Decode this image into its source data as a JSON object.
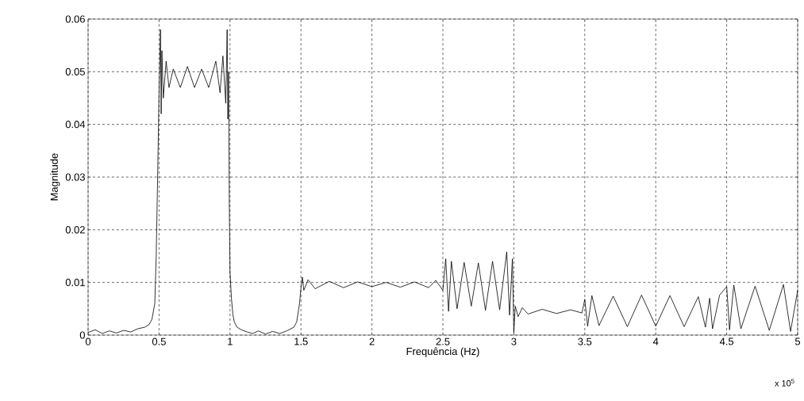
{
  "chart_data": {
    "type": "line",
    "xlabel": "Frequência (Hz)",
    "ylabel": "Magnitude",
    "annotations": [
      "x 10$^{5}$"
    ],
    "xlim": [
      0,
      5
    ],
    "ylim": [
      0,
      0.06
    ],
    "xticks": [
      0,
      0.5,
      1,
      1.5,
      2,
      2.5,
      3,
      3.5,
      4,
      4.5,
      5
    ],
    "yticks": [
      0,
      0.01,
      0.02,
      0.03,
      0.04,
      0.05,
      0.06
    ],
    "grid": true,
    "line_style": "solid",
    "series": [
      {
        "color": "#000000",
        "x": [
          0,
          0.05,
          0.1,
          0.15,
          0.2,
          0.25,
          0.3,
          0.35,
          0.4,
          0.43,
          0.45,
          0.47,
          0.48,
          0.49,
          0.5,
          0.51,
          0.515,
          0.52,
          0.53,
          0.55,
          0.57,
          0.6,
          0.65,
          0.7,
          0.75,
          0.8,
          0.85,
          0.9,
          0.93,
          0.95,
          0.97,
          0.98,
          0.985,
          0.99,
          0.995,
          1,
          1.01,
          1.02,
          1.03,
          1.05,
          1.08,
          1.12,
          1.16,
          1.2,
          1.25,
          1.3,
          1.35,
          1.4,
          1.45,
          1.47,
          1.49,
          1.5,
          1.51,
          1.52,
          1.55,
          1.6,
          1.7,
          1.8,
          1.9,
          2,
          2.1,
          2.2,
          2.3,
          2.4,
          2.45,
          2.5,
          2.52,
          2.54,
          2.56,
          2.6,
          2.65,
          2.7,
          2.75,
          2.8,
          2.85,
          2.9,
          2.95,
          2.97,
          2.99,
          3,
          3.01,
          3.03,
          3.06,
          3.1,
          3.2,
          3.3,
          3.4,
          3.48,
          3.5,
          3.52,
          3.55,
          3.6,
          3.7,
          3.8,
          3.9,
          4,
          4.1,
          4.2,
          4.3,
          4.35,
          4.38,
          4.4,
          4.45,
          4.5,
          4.52,
          4.55,
          4.6,
          4.7,
          4.8,
          4.9,
          4.95,
          5
        ],
        "values": [
          0.0005,
          0.001,
          0.0003,
          0.0008,
          0.0004,
          0.0009,
          0.0006,
          0.0012,
          0.0015,
          0.002,
          0.003,
          0.006,
          0.015,
          0.03,
          0.046,
          0.058,
          0.042,
          0.054,
          0.045,
          0.052,
          0.047,
          0.0505,
          0.047,
          0.051,
          0.047,
          0.0505,
          0.047,
          0.052,
          0.046,
          0.053,
          0.044,
          0.058,
          0.041,
          0.05,
          0.025,
          0.012,
          0.007,
          0.004,
          0.0025,
          0.0015,
          0.001,
          0.0006,
          0.0003,
          0.0008,
          0.0002,
          0.0007,
          0.0003,
          0.0008,
          0.0015,
          0.0025,
          0.006,
          0.009,
          0.011,
          0.0085,
          0.0105,
          0.0088,
          0.0102,
          0.009,
          0.0101,
          0.0092,
          0.01,
          0.0091,
          0.0101,
          0.009,
          0.0104,
          0.0085,
          0.0145,
          0.0045,
          0.014,
          0.005,
          0.0138,
          0.0055,
          0.0137,
          0.0047,
          0.014,
          0.0048,
          0.0158,
          0.0038,
          0.0145,
          0.0005,
          0.0055,
          0.0035,
          0.0052,
          0.004,
          0.0049,
          0.0041,
          0.0048,
          0.0042,
          0.0068,
          0.0017,
          0.0075,
          0.0018,
          0.0074,
          0.0016,
          0.0076,
          0.0017,
          0.0075,
          0.0016,
          0.0073,
          0.0015,
          0.007,
          0.0012,
          0.0076,
          0.0092,
          0.001,
          0.0095,
          0.0012,
          0.0093,
          0.0009,
          0.0096,
          0.0007,
          0.0085
        ]
      }
    ]
  }
}
